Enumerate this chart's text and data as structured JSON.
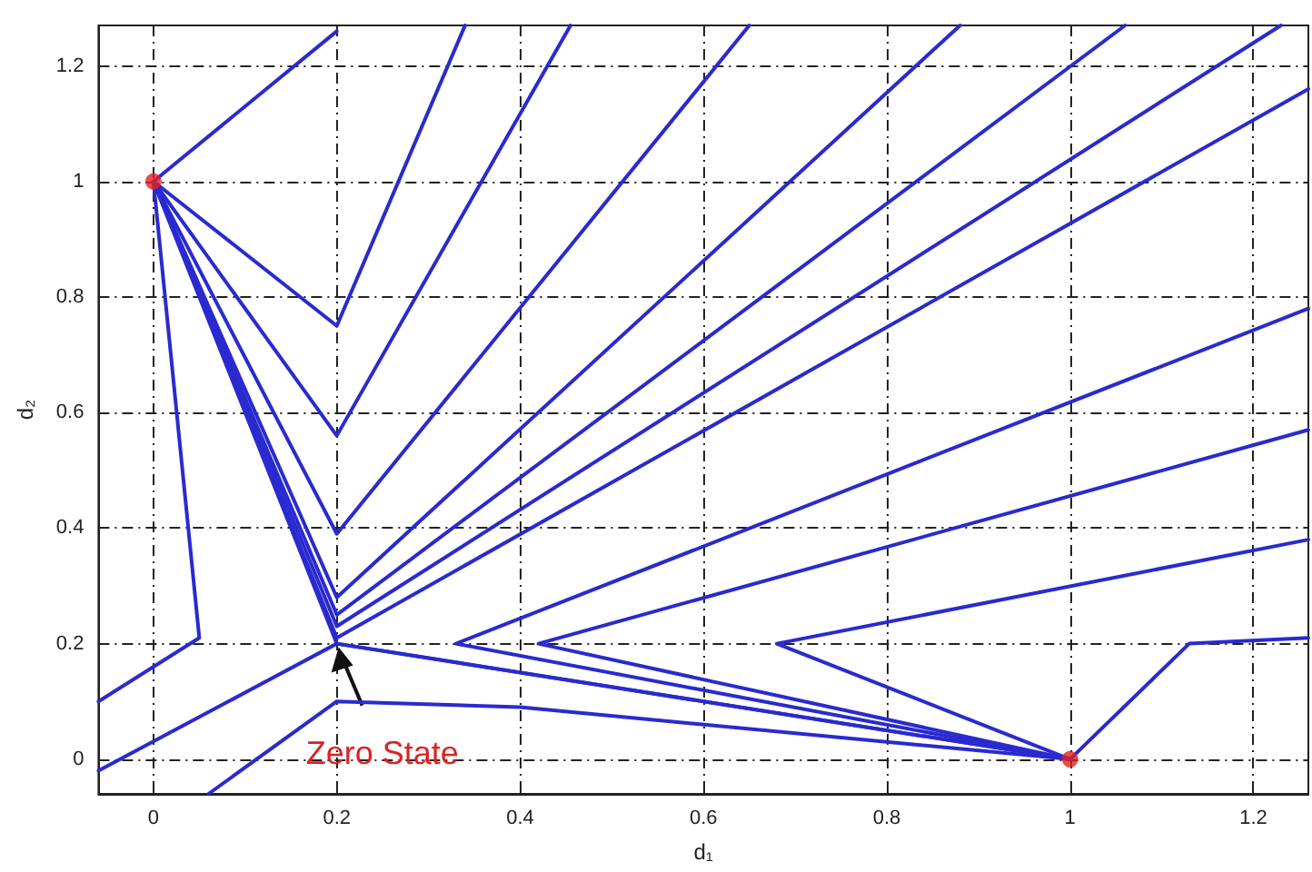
{
  "chart_data": {
    "type": "line",
    "xlabel": "d₁",
    "ylabel": "d₂",
    "xlim": [
      -0.06,
      1.26
    ],
    "ylim": [
      -0.06,
      1.27
    ],
    "xticks": [
      0,
      0.2,
      0.4,
      0.6,
      0.8,
      1,
      1.2
    ],
    "yticks": [
      0,
      0.2,
      0.4,
      0.6,
      0.8,
      1,
      1.2
    ],
    "grid": true,
    "marker": "none",
    "line_style": "solid",
    "series": [
      {
        "color": "#2a2ad0",
        "x": [
          0,
          0.2
        ],
        "values": [
          1,
          1.26
        ]
      },
      {
        "color": "#2a2ad0",
        "x": [
          0,
          0.2,
          0.34
        ],
        "values": [
          1,
          0.75,
          1.27
        ]
      },
      {
        "color": "#2a2ad0",
        "x": [
          0,
          0.2,
          0.455
        ],
        "values": [
          1,
          0.56,
          1.27
        ]
      },
      {
        "color": "#2a2ad0",
        "x": [
          0,
          0.2,
          0.65
        ],
        "values": [
          1,
          0.39,
          1.27
        ]
      },
      {
        "color": "#2a2ad0",
        "x": [
          0,
          0.2,
          0.88
        ],
        "values": [
          1,
          0.28,
          1.27
        ]
      },
      {
        "color": "#2a2ad0",
        "x": [
          0,
          0.2,
          1.06
        ],
        "values": [
          1,
          0.25,
          1.27
        ]
      },
      {
        "color": "#2a2ad0",
        "x": [
          0,
          0.2,
          1.23
        ],
        "values": [
          1,
          0.23,
          1.27
        ]
      },
      {
        "color": "#2a2ad0",
        "x": [
          0,
          0.2,
          1.26
        ],
        "values": [
          1,
          0.21,
          1.16
        ]
      },
      {
        "color": "#2a2ad0",
        "x": [
          0,
          0.2,
          1
        ],
        "values": [
          1,
          0.2,
          0
        ]
      },
      {
        "color": "#2a2ad0",
        "x": [
          0,
          0.05,
          -0.06
        ],
        "values": [
          1,
          0.21,
          0.1
        ]
      },
      {
        "color": "#2a2ad0",
        "x": [
          -0.06,
          0.2,
          1
        ],
        "values": [
          -0.02,
          0.2,
          0
        ]
      },
      {
        "color": "#2a2ad0",
        "x": [
          0.06,
          0.2,
          0.4,
          1
        ],
        "values": [
          -0.06,
          0.1,
          0.09,
          0
        ]
      },
      {
        "color": "#2a2ad0",
        "x": [
          1.26,
          0.33,
          1
        ],
        "values": [
          0.78,
          0.2,
          0
        ]
      },
      {
        "color": "#2a2ad0",
        "x": [
          1.26,
          0.42,
          1
        ],
        "values": [
          0.57,
          0.2,
          0
        ]
      },
      {
        "color": "#2a2ad0",
        "x": [
          1.26,
          0.68,
          1
        ],
        "values": [
          0.38,
          0.2,
          0
        ]
      },
      {
        "color": "#2a2ad0",
        "x": [
          1,
          1.13,
          1.26
        ],
        "values": [
          0,
          0.2,
          0.21
        ]
      },
      {
        "type": "scatter",
        "color": "#e02020",
        "marker": "circle",
        "x": [
          0,
          1
        ],
        "values": [
          1,
          0
        ]
      }
    ],
    "annotations": [
      {
        "text": "Zero State",
        "x": 0.2,
        "y": 0.2
      }
    ]
  }
}
